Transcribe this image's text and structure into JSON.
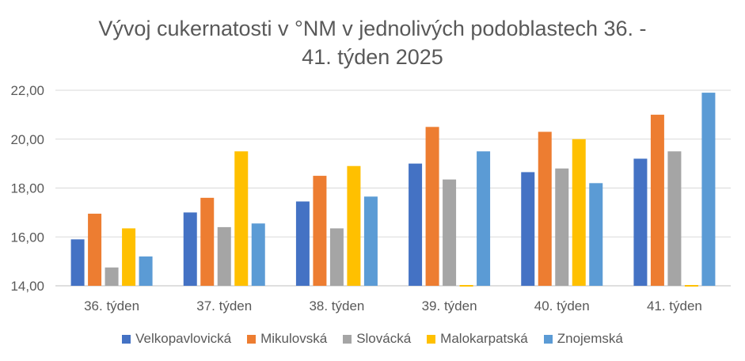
{
  "chart_data": {
    "type": "bar",
    "title_lines": [
      "Vývoj cukernatosti v °NM v jednolivých podoblastech 36. -",
      "41. týden 2025"
    ],
    "categories": [
      "36. týden",
      "37. týden",
      "38. týden",
      "39. týden",
      "40. týden",
      "41. týden"
    ],
    "ylim": [
      14,
      22
    ],
    "yticks": [
      "14,00",
      "16,00",
      "18,00",
      "20,00",
      "22,00"
    ],
    "ytick_values": [
      14,
      16,
      18,
      20,
      22
    ],
    "grid": true,
    "legend_position": "bottom",
    "series": [
      {
        "name": "Velkopavlovická",
        "color": "#4472C4",
        "values": [
          15.9,
          17.0,
          17.45,
          19.0,
          18.65,
          19.2
        ]
      },
      {
        "name": "Mikulovská",
        "color": "#ED7D31",
        "values": [
          16.95,
          17.6,
          18.5,
          20.5,
          20.3,
          21.0
        ]
      },
      {
        "name": "Slovácká",
        "color": "#A5A5A5",
        "values": [
          14.75,
          16.4,
          16.35,
          18.35,
          18.8,
          19.5
        ]
      },
      {
        "name": "Malokarpatská",
        "color": "#FFC000",
        "values": [
          16.35,
          19.5,
          18.9,
          14.0,
          20.0,
          14.0
        ]
      },
      {
        "name": "Znojemská",
        "color": "#5B9BD5",
        "values": [
          15.2,
          16.55,
          17.65,
          19.5,
          18.2,
          21.9
        ]
      }
    ]
  }
}
